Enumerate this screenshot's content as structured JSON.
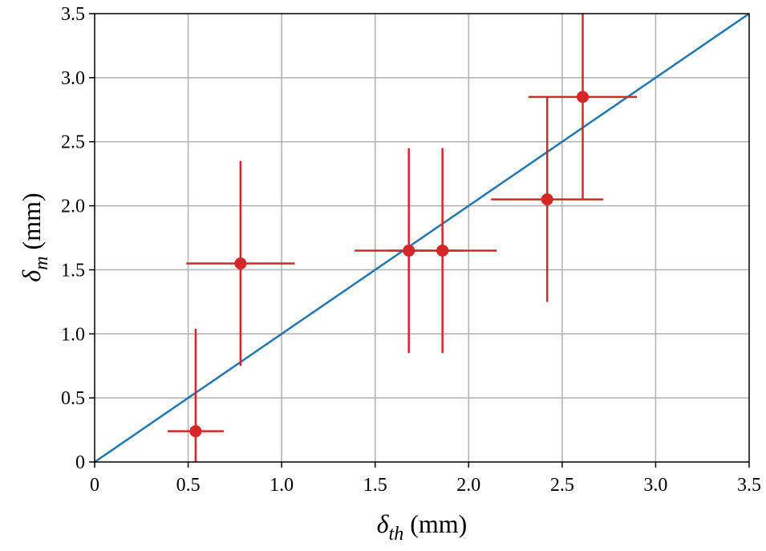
{
  "chart_data": {
    "type": "scatter",
    "x_label": {
      "symbol": "δ",
      "subscript": "th",
      "unit": " (mm)"
    },
    "y_label": {
      "symbol": "δ",
      "subscript": "m",
      "unit": " (mm)"
    },
    "xlim": [
      0,
      3.5
    ],
    "ylim": [
      0,
      3.5
    ],
    "x_ticks": [
      0,
      0.5,
      1.0,
      1.5,
      2.0,
      2.5,
      3.0,
      3.5
    ],
    "x_tick_labels": [
      "0",
      "0.5",
      "1.0",
      "1.5",
      "2.0",
      "2.5",
      "3.0",
      "3.5"
    ],
    "y_ticks": [
      0,
      0.5,
      1.0,
      1.5,
      2.0,
      2.5,
      3.0,
      3.5
    ],
    "y_tick_labels": [
      "0",
      "0.5",
      "1.0",
      "1.5",
      "2.0",
      "2.5",
      "3.0",
      "3.5"
    ],
    "grid": true,
    "reference_line": {
      "x": [
        0,
        3.5
      ],
      "y": [
        0,
        3.5
      ],
      "color": "#1f77b4"
    },
    "points": [
      {
        "x": 0.54,
        "y": 0.24,
        "xerr": 0.15,
        "yerr_low": 0.24,
        "yerr_high": 0.8
      },
      {
        "x": 0.78,
        "y": 1.55,
        "xerr": 0.29,
        "yerr": 0.8
      },
      {
        "x": 1.68,
        "y": 1.65,
        "xerr": 0.29,
        "yerr": 0.8
      },
      {
        "x": 1.86,
        "y": 1.65,
        "xerr": 0.29,
        "yerr": 0.8
      },
      {
        "x": 2.42,
        "y": 2.05,
        "xerr": 0.3,
        "yerr": 0.8
      },
      {
        "x": 2.61,
        "y": 2.85,
        "xerr": 0.29,
        "yerr_low": 0.8,
        "yerr_high": 0.65
      }
    ],
    "point_color": "#d62728"
  }
}
